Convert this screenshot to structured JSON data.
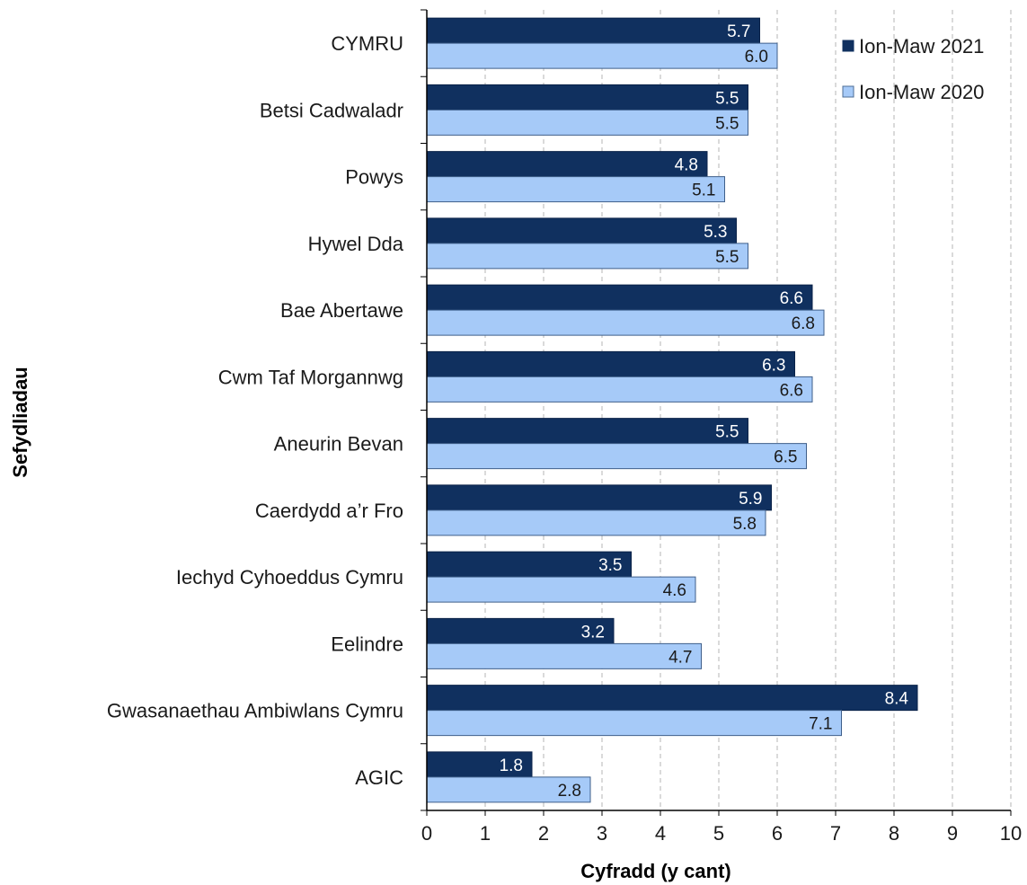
{
  "chart_data": {
    "type": "bar",
    "orientation": "horizontal",
    "categories": [
      "CYMRU",
      "Betsi Cadwaladr",
      "Powys",
      "Hywel Dda",
      "Bae Abertawe",
      "Cwm Taf Morgannwg",
      "Aneurin Bevan",
      "Caerdydd a’r Fro",
      "Iechyd Cyhoeddus Cymru",
      "Eelindre",
      "Gwasanaethau Ambiwlans Cymru",
      "AGIC"
    ],
    "series": [
      {
        "name": "Ion-Maw 2021",
        "color": "#10305f",
        "values": [
          5.7,
          5.5,
          4.8,
          5.3,
          6.6,
          6.3,
          5.5,
          5.9,
          3.5,
          3.2,
          8.4,
          1.8
        ]
      },
      {
        "name": "Ion-Maw 2020",
        "color": "#a6caf8",
        "values": [
          6.0,
          5.5,
          5.1,
          5.5,
          6.8,
          6.6,
          6.5,
          5.8,
          4.6,
          4.7,
          7.1,
          2.8
        ]
      }
    ],
    "data_labels": {
      "Ion-Maw 2021": [
        "5.7",
        "5.5",
        "4.8",
        "5.3",
        "6.6",
        "6.3",
        "5.5",
        "5.9",
        "3.5",
        "3.2",
        "8.4",
        "1.8"
      ],
      "Ion-Maw 2020": [
        "6.0",
        "5.5",
        "5.1",
        "5.5",
        "6.8",
        "6.6",
        "6.5",
        "5.8",
        "4.6",
        "4.7",
        "7.1",
        "2.8"
      ]
    },
    "x_ticks": [
      "0",
      "1",
      "2",
      "3",
      "4",
      "5",
      "6",
      "7",
      "8",
      "9",
      "10"
    ],
    "xlabel": "Cyfradd (y cant)",
    "ylabel": "Sefydliadau",
    "xlim": [
      0,
      10
    ],
    "grid": "vertical-dashed",
    "legend_position": "top-right"
  }
}
